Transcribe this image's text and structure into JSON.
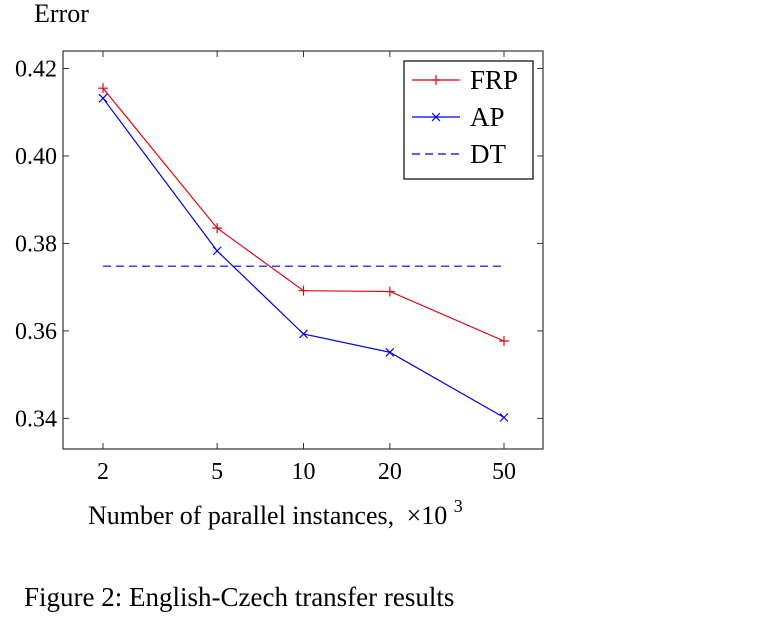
{
  "chart_data": {
    "type": "line",
    "ylabel": "Error",
    "xlabel": "Number of parallel instances,",
    "xlabel_suffix": "×10",
    "xlabel_exponent": "3",
    "x": [
      2,
      5,
      10,
      20,
      50
    ],
    "x_tick_labels": [
      "2",
      "5",
      "10",
      "20",
      "50"
    ],
    "x_scale": "log",
    "ylim": [
      0.333,
      0.424
    ],
    "y_ticks": [
      0.34,
      0.36,
      0.38,
      0.4,
      0.42
    ],
    "y_tick_labels": [
      "0.34",
      "0.36",
      "0.38",
      "0.40",
      "0.42"
    ],
    "grid": false,
    "legend_position": "top-right",
    "series": [
      {
        "name": "FRP",
        "values": [
          0.4155,
          0.3835,
          0.3692,
          0.369,
          0.3577
        ],
        "color": "#e8000b",
        "marker": "plus",
        "dash": "solid"
      },
      {
        "name": "AP",
        "values": [
          0.4132,
          0.3783,
          0.3593,
          0.3551,
          0.3402
        ],
        "color": "#0000e6",
        "marker": "x",
        "dash": "solid"
      },
      {
        "name": "DT",
        "values": [
          0.3748,
          0.3748,
          0.3748,
          0.3748,
          0.3748
        ],
        "color": "#0000e6",
        "marker": "none",
        "dash": "dashed"
      }
    ]
  },
  "caption": "Figure 2: English-Czech transfer results"
}
